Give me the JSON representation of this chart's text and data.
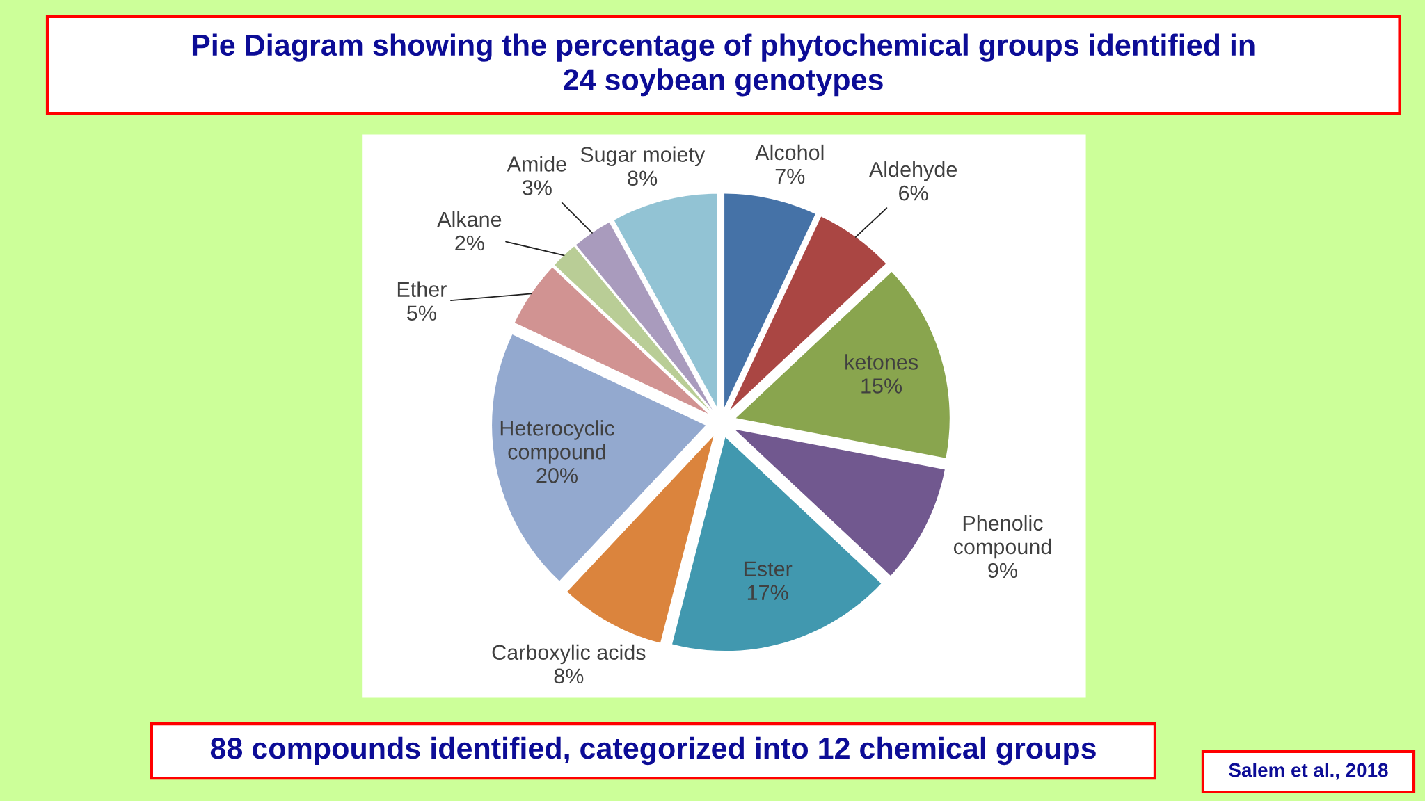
{
  "chart_data": {
    "type": "pie",
    "title": "Pie Diagram showing the percentage of phytochemical groups identified in\n24 soybean genotypes",
    "categories": [
      "Alcohol",
      "Aldehyde",
      "ketones",
      "Phenolic\ncompound",
      "Ester",
      "Carboxylic acids",
      "Heterocyclic\ncompound",
      "Ether",
      "Alkane",
      "Amide",
      "Sugar moiety"
    ],
    "values": [
      7,
      6,
      15,
      9,
      17,
      8,
      20,
      5,
      2,
      3,
      8
    ],
    "value_labels": [
      "7%",
      "6%",
      "15%",
      "9%",
      "17%",
      "8%",
      "20%",
      "5%",
      "2%",
      "3%",
      "8%"
    ],
    "colors": [
      "#4572a7",
      "#aa4643",
      "#89a54e",
      "#71588f",
      "#4198af",
      "#db843d",
      "#93a9cf",
      "#d19392",
      "#b9cd96",
      "#a99bbd",
      "#92c3d4"
    ],
    "annotations": [
      "88 compounds identified, categorized into 12 chemical groups",
      "Salem et al., 2018"
    ]
  }
}
